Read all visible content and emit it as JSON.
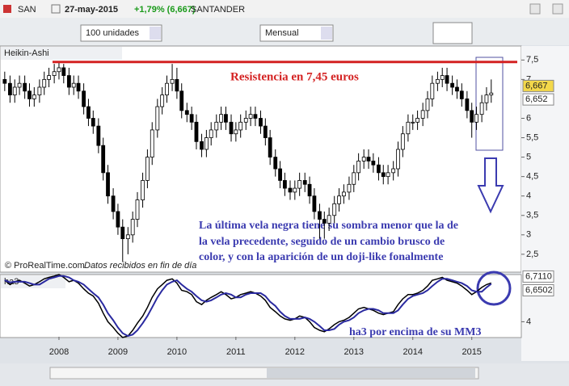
{
  "header": {
    "symbol": "SAN",
    "date": "27-may-2015",
    "change": "+1,79% (6,667)",
    "name": "SANTANDER"
  },
  "toolbar": {
    "quantity": "100 unidades",
    "period": "Mensual"
  },
  "chart_data": [
    {
      "type": "candlestick",
      "title": "Heikin-Ashi",
      "x": [
        2007.08,
        2007.17,
        2007.25,
        2007.33,
        2007.42,
        2007.5,
        2007.58,
        2007.67,
        2007.75,
        2007.83,
        2007.92,
        2008,
        2008.08,
        2008.17,
        2008.25,
        2008.33,
        2008.42,
        2008.5,
        2008.58,
        2008.67,
        2008.75,
        2008.83,
        2008.92,
        2009,
        2009.08,
        2009.17,
        2009.25,
        2009.33,
        2009.42,
        2009.5,
        2009.58,
        2009.67,
        2009.75,
        2009.83,
        2009.92,
        2010,
        2010.08,
        2010.17,
        2010.25,
        2010.33,
        2010.42,
        2010.5,
        2010.58,
        2010.67,
        2010.75,
        2010.83,
        2010.92,
        2011,
        2011.08,
        2011.17,
        2011.25,
        2011.33,
        2011.42,
        2011.5,
        2011.58,
        2011.67,
        2011.75,
        2011.83,
        2011.92,
        2012,
        2012.08,
        2012.17,
        2012.25,
        2012.33,
        2012.42,
        2012.5,
        2012.58,
        2012.67,
        2012.75,
        2012.83,
        2012.92,
        2013,
        2013.08,
        2013.17,
        2013.25,
        2013.33,
        2013.42,
        2013.5,
        2013.58,
        2013.67,
        2013.75,
        2013.83,
        2013.92,
        2014,
        2014.08,
        2014.17,
        2014.25,
        2014.33,
        2014.42,
        2014.5,
        2014.58,
        2014.67,
        2014.75,
        2014.83,
        2014.92,
        2015,
        2015.08,
        2015.17,
        2015.25,
        2015.33
      ],
      "open": [
        7.0,
        6.9,
        6.6,
        6.8,
        6.9,
        6.7,
        6.5,
        6.6,
        6.8,
        7.0,
        7.1,
        7.2,
        7.3,
        7.1,
        6.8,
        6.9,
        6.7,
        6.3,
        6.0,
        5.8,
        5.3,
        4.6,
        4.0,
        3.6,
        3.2,
        2.9,
        3.0,
        3.4,
        3.9,
        4.4,
        5.0,
        5.7,
        6.3,
        6.6,
        6.9,
        7.0,
        6.7,
        6.2,
        6.1,
        5.9,
        5.4,
        5.2,
        5.5,
        5.7,
        5.9,
        6.1,
        5.9,
        5.6,
        5.7,
        5.9,
        6.0,
        6.1,
        6.0,
        5.8,
        5.5,
        5.0,
        4.7,
        4.4,
        4.2,
        4.1,
        4.2,
        4.4,
        4.3,
        4.0,
        3.6,
        3.4,
        3.3,
        3.5,
        3.8,
        4.0,
        4.1,
        4.3,
        4.6,
        4.9,
        5.0,
        4.9,
        4.8,
        4.6,
        4.5,
        4.6,
        4.7,
        5.2,
        5.6,
        5.9,
        5.9,
        6.0,
        6.2,
        6.5,
        6.9,
        7.0,
        7.1,
        6.9,
        6.8,
        6.7,
        6.5,
        6.2,
        5.9,
        6.1,
        6.4,
        6.6
      ],
      "high": [
        7.2,
        7.1,
        7.0,
        7.1,
        7.1,
        6.9,
        6.8,
        7.0,
        7.2,
        7.3,
        7.4,
        7.45,
        7.4,
        7.3,
        7.1,
        7.1,
        6.9,
        6.5,
        6.2,
        6.0,
        5.5,
        4.8,
        4.2,
        3.8,
        3.4,
        3.2,
        3.6,
        4.1,
        4.6,
        5.2,
        5.9,
        6.5,
        6.8,
        7.1,
        7.4,
        7.3,
        6.9,
        6.4,
        6.3,
        6.1,
        5.6,
        5.7,
        5.9,
        6.1,
        6.3,
        6.3,
        6.1,
        5.9,
        6.1,
        6.2,
        6.3,
        6.3,
        6.2,
        6.0,
        5.7,
        5.2,
        4.9,
        4.6,
        4.4,
        4.4,
        4.6,
        4.6,
        4.5,
        4.2,
        3.8,
        3.6,
        3.7,
        4.0,
        4.2,
        4.3,
        4.5,
        4.8,
        5.1,
        5.2,
        5.2,
        5.1,
        5.0,
        4.8,
        4.8,
        4.9,
        5.4,
        5.8,
        6.1,
        6.1,
        6.2,
        6.4,
        6.7,
        7.1,
        7.2,
        7.3,
        7.3,
        7.1,
        7.0,
        6.9,
        6.7,
        6.4,
        6.3,
        6.6,
        6.8,
        7.0
      ],
      "low": [
        6.7,
        6.4,
        6.4,
        6.6,
        6.5,
        6.3,
        6.3,
        6.4,
        6.6,
        6.8,
        6.9,
        7.0,
        6.9,
        6.6,
        6.6,
        6.5,
        6.1,
        5.8,
        5.6,
        5.1,
        4.4,
        3.8,
        3.4,
        3.0,
        2.3,
        2.5,
        2.8,
        3.2,
        3.7,
        4.2,
        4.8,
        5.5,
        6.1,
        6.4,
        6.7,
        6.5,
        6.0,
        5.9,
        5.7,
        5.2,
        5.0,
        5.0,
        5.3,
        5.5,
        5.7,
        5.7,
        5.4,
        5.4,
        5.5,
        5.7,
        5.8,
        5.8,
        5.6,
        5.3,
        4.8,
        4.5,
        4.2,
        4.0,
        3.9,
        3.9,
        4.0,
        4.1,
        3.8,
        3.4,
        2.9,
        2.9,
        3.1,
        3.3,
        3.6,
        3.8,
        3.9,
        4.1,
        4.4,
        4.7,
        4.7,
        4.6,
        4.4,
        4.3,
        4.3,
        4.4,
        4.5,
        5.0,
        5.4,
        5.7,
        5.7,
        5.8,
        6.0,
        6.3,
        6.7,
        6.8,
        6.7,
        6.6,
        6.5,
        6.3,
        6.0,
        5.5,
        5.7,
        5.9,
        6.2,
        6.4
      ],
      "close": [
        6.9,
        6.6,
        6.8,
        6.9,
        6.7,
        6.5,
        6.6,
        6.8,
        7.0,
        7.1,
        7.2,
        7.3,
        7.1,
        6.8,
        6.9,
        6.7,
        6.3,
        6.0,
        5.8,
        5.3,
        4.6,
        4.0,
        3.6,
        3.2,
        2.9,
        3.0,
        3.4,
        3.9,
        4.4,
        5.0,
        5.7,
        6.3,
        6.6,
        6.9,
        7.0,
        6.7,
        6.2,
        6.1,
        5.9,
        5.4,
        5.2,
        5.5,
        5.7,
        5.9,
        6.1,
        5.9,
        5.6,
        5.7,
        5.9,
        6.0,
        6.1,
        6.0,
        5.8,
        5.5,
        5.0,
        4.7,
        4.4,
        4.2,
        4.1,
        4.2,
        4.4,
        4.3,
        4.0,
        3.6,
        3.4,
        3.3,
        3.5,
        3.8,
        4.0,
        4.1,
        4.3,
        4.6,
        4.9,
        5.0,
        4.9,
        4.8,
        4.6,
        4.5,
        4.6,
        4.7,
        5.2,
        5.6,
        5.9,
        5.9,
        6.0,
        6.2,
        6.5,
        6.9,
        7.0,
        7.1,
        6.9,
        6.8,
        6.7,
        6.5,
        6.2,
        5.9,
        6.1,
        6.4,
        6.6,
        6.65
      ],
      "up_color": "#ffffff",
      "down_color": "#000000",
      "xlim": [
        2007,
        2015.84
      ],
      "xticks": [
        2008,
        2009,
        2010,
        2011,
        2012,
        2013,
        2014,
        2015
      ],
      "ylim": [
        2.04,
        7.86
      ],
      "yticks": [
        {
          "value": 7.5,
          "label": "7,5"
        },
        7,
        6,
        {
          "value": 5.5,
          "label": "5,5"
        },
        5,
        {
          "value": 4.5,
          "label": "4,5"
        },
        4,
        {
          "value": 3.5,
          "label": "3,5"
        },
        3,
        {
          "value": 2.5,
          "label": "2,5"
        }
      ],
      "last_labels": [
        {
          "value": 6.667,
          "label": "6,667",
          "color": "#f3d84a"
        },
        {
          "value": 6.652,
          "label": "6,652",
          "color": "#ffffff"
        }
      ],
      "resistance": {
        "value": 7.45,
        "color": "#d42222"
      },
      "resistance_label": "Resistencia en 7,45 euros",
      "annotation": [
        "La última vela negra tiene su sombra menor que la de",
        "la vela precedente, seguido de un cambio brusco de",
        "color, y con la aparición de un doji-like fonalmente"
      ],
      "source": "© ProRealTime.com",
      "source_note": "Datos recibidos en fin de día"
    },
    {
      "type": "line",
      "title": "ha3",
      "series": [
        {
          "color": "#000000",
          "values": [
            6.9,
            6.6,
            6.8,
            6.9,
            6.7,
            6.5,
            6.6,
            6.8,
            7.0,
            7.1,
            7.2,
            7.3,
            7.1,
            6.8,
            6.9,
            6.7,
            6.3,
            6.0,
            5.8,
            5.3,
            4.6,
            4.0,
            3.6,
            3.2,
            2.9,
            3.0,
            3.4,
            3.9,
            4.4,
            5.0,
            5.7,
            6.3,
            6.6,
            6.9,
            7.0,
            6.7,
            6.2,
            6.1,
            5.9,
            5.4,
            5.2,
            5.5,
            5.7,
            5.9,
            6.1,
            5.9,
            5.6,
            5.7,
            5.9,
            6.0,
            6.1,
            6.0,
            5.8,
            5.5,
            5.0,
            4.7,
            4.4,
            4.2,
            4.1,
            4.2,
            4.4,
            4.3,
            4.0,
            3.6,
            3.4,
            3.3,
            3.5,
            3.8,
            4.0,
            4.1,
            4.3,
            4.6,
            4.9,
            5.0,
            4.9,
            4.8,
            4.6,
            4.5,
            4.6,
            4.7,
            5.2,
            5.6,
            5.9,
            5.9,
            6.0,
            6.2,
            6.5,
            6.9,
            7.0,
            7.1,
            6.9,
            6.8,
            6.7,
            6.5,
            6.2,
            5.9,
            6.1,
            6.4,
            6.6,
            6.711
          ]
        },
        {
          "color": "#2a2aa0",
          "values": [
            6.9,
            6.75,
            6.8,
            6.8,
            6.8,
            6.7,
            6.6,
            6.6,
            6.8,
            7.0,
            7.1,
            7.2,
            7.2,
            7.1,
            6.9,
            6.8,
            6.6,
            6.3,
            6.0,
            5.7,
            5.2,
            4.6,
            4.1,
            3.6,
            3.2,
            3.0,
            3.1,
            3.4,
            3.9,
            4.4,
            5.0,
            5.7,
            6.2,
            6.6,
            6.8,
            6.9,
            6.6,
            6.3,
            6.1,
            5.8,
            5.5,
            5.4,
            5.5,
            5.7,
            5.9,
            6.0,
            5.9,
            5.7,
            5.7,
            5.9,
            6.0,
            6.0,
            6.0,
            5.8,
            5.4,
            5.1,
            4.7,
            4.4,
            4.2,
            4.2,
            4.2,
            4.3,
            4.2,
            4.0,
            3.7,
            3.4,
            3.4,
            3.5,
            3.8,
            4.0,
            4.1,
            4.3,
            4.6,
            4.8,
            4.9,
            4.9,
            4.8,
            4.6,
            4.6,
            4.6,
            4.8,
            5.2,
            5.6,
            5.8,
            5.9,
            6.0,
            6.2,
            6.5,
            6.8,
            7.0,
            7.0,
            6.9,
            6.8,
            6.7,
            6.5,
            6.2,
            6.1,
            6.1,
            6.4,
            6.6502
          ]
        }
      ],
      "ylim": [
        2.95,
        7.3
      ],
      "yticks": [
        4
      ],
      "last_labels": [
        {
          "value": 6.711,
          "label": "6,7110",
          "color": "#ffffff"
        },
        {
          "value": 6.6502,
          "label": "6,6502",
          "color": "#ffffff"
        }
      ],
      "annotation": "ha3 por encima de su MM3"
    }
  ]
}
